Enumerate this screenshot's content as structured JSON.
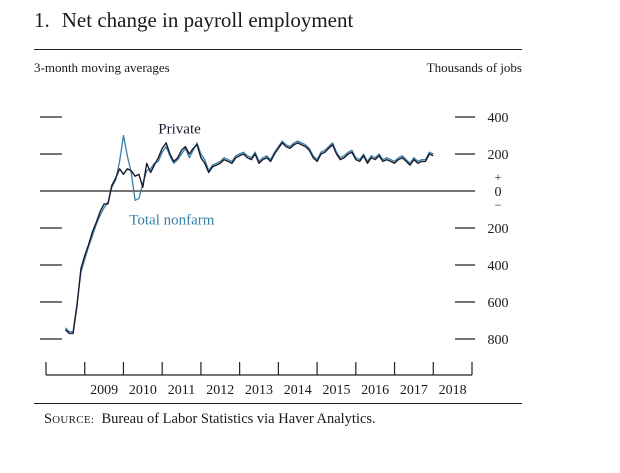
{
  "figure": {
    "number": "1.",
    "title": "Net change in payroll employment",
    "subtitle_left": "3-month moving averages",
    "subtitle_right": "Thousands of jobs",
    "source_label": "Source:",
    "source_text": "Bureau of Labor Statistics via Haver Analytics."
  },
  "chart_data": {
    "type": "line",
    "title": "Net change in payroll employment",
    "ylabel": "Thousands of jobs",
    "note": "3-month moving averages",
    "ylim": [
      -900,
      400
    ],
    "y_ticks": [
      {
        "value": 400,
        "label": "400"
      },
      {
        "value": 200,
        "label": "200"
      },
      {
        "value": -200,
        "label": "200"
      },
      {
        "value": -400,
        "label": "400"
      },
      {
        "value": -600,
        "label": "600"
      },
      {
        "value": -800,
        "label": "800"
      }
    ],
    "zero_label": "0",
    "plus_sign": "+",
    "minus_sign": "−",
    "x_ticks": [
      "2009",
      "2010",
      "2011",
      "2012",
      "2013",
      "2014",
      "2015",
      "2016",
      "2017",
      "2018"
    ],
    "xlim": [
      2008.0,
      2019.0
    ],
    "series": [
      {
        "name": "Private",
        "color": "#1b1b2f",
        "x": [
          2008.5,
          2008.6,
          2008.7,
          2008.8,
          2008.9,
          2009.0,
          2009.1,
          2009.2,
          2009.3,
          2009.4,
          2009.5,
          2009.6,
          2009.7,
          2009.8,
          2009.9,
          2010.0,
          2010.1,
          2010.2,
          2010.3,
          2010.4,
          2010.5,
          2010.6,
          2010.7,
          2010.8,
          2010.9,
          2011.0,
          2011.1,
          2011.2,
          2011.3,
          2011.4,
          2011.5,
          2011.6,
          2011.7,
          2011.8,
          2011.9,
          2012.0,
          2012.1,
          2012.2,
          2012.3,
          2012.4,
          2012.5,
          2012.6,
          2012.7,
          2012.8,
          2012.9,
          2013.0,
          2013.1,
          2013.2,
          2013.3,
          2013.4,
          2013.5,
          2013.6,
          2013.7,
          2013.8,
          2013.9,
          2014.0,
          2014.1,
          2014.2,
          2014.3,
          2014.4,
          2014.5,
          2014.6,
          2014.7,
          2014.8,
          2014.9,
          2015.0,
          2015.1,
          2015.2,
          2015.3,
          2015.4,
          2015.5,
          2015.6,
          2015.7,
          2015.8,
          2015.9,
          2016.0,
          2016.1,
          2016.2,
          2016.3,
          2016.4,
          2016.5,
          2016.6,
          2016.7,
          2016.8,
          2016.9,
          2017.0,
          2017.1,
          2017.2,
          2017.3,
          2017.4,
          2017.5,
          2017.6,
          2017.7,
          2017.8,
          2017.9,
          2018.0
        ],
        "y": [
          -750,
          -770,
          -770,
          -620,
          -420,
          -350,
          -290,
          -220,
          -170,
          -110,
          -70,
          -70,
          30,
          70,
          120,
          90,
          120,
          110,
          80,
          90,
          20,
          150,
          100,
          140,
          180,
          230,
          260,
          200,
          160,
          180,
          220,
          240,
          200,
          230,
          250,
          180,
          150,
          100,
          130,
          140,
          150,
          170,
          160,
          150,
          180,
          190,
          200,
          180,
          170,
          200,
          150,
          170,
          180,
          160,
          200,
          230,
          260,
          240,
          230,
          250,
          260,
          250,
          240,
          220,
          180,
          160,
          200,
          210,
          230,
          250,
          200,
          170,
          180,
          200,
          210,
          170,
          160,
          190,
          150,
          180,
          170,
          190,
          160,
          170,
          160,
          150,
          170,
          180,
          160,
          140,
          170,
          150,
          160,
          160,
          200,
          190
        ]
      },
      {
        "name": "Total nonfarm",
        "color": "#3a7fa6",
        "x": [
          2008.5,
          2008.6,
          2008.7,
          2008.8,
          2008.9,
          2009.0,
          2009.1,
          2009.2,
          2009.3,
          2009.4,
          2009.5,
          2009.6,
          2009.7,
          2009.8,
          2009.9,
          2010.0,
          2010.1,
          2010.2,
          2010.3,
          2010.4,
          2010.5,
          2010.6,
          2010.7,
          2010.8,
          2010.9,
          2011.0,
          2011.1,
          2011.2,
          2011.3,
          2011.4,
          2011.5,
          2011.6,
          2011.7,
          2011.8,
          2011.9,
          2012.0,
          2012.1,
          2012.2,
          2012.3,
          2012.4,
          2012.5,
          2012.6,
          2012.7,
          2012.8,
          2012.9,
          2013.0,
          2013.1,
          2013.2,
          2013.3,
          2013.4,
          2013.5,
          2013.6,
          2013.7,
          2013.8,
          2013.9,
          2014.0,
          2014.1,
          2014.2,
          2014.3,
          2014.4,
          2014.5,
          2014.6,
          2014.7,
          2014.8,
          2014.9,
          2015.0,
          2015.1,
          2015.2,
          2015.3,
          2015.4,
          2015.5,
          2015.6,
          2015.7,
          2015.8,
          2015.9,
          2016.0,
          2016.1,
          2016.2,
          2016.3,
          2016.4,
          2016.5,
          2016.6,
          2016.7,
          2016.8,
          2016.9,
          2017.0,
          2017.1,
          2017.2,
          2017.3,
          2017.4,
          2017.5,
          2017.6,
          2017.7,
          2017.8,
          2017.9,
          2018.0
        ],
        "y": [
          -740,
          -760,
          -760,
          -610,
          -440,
          -370,
          -300,
          -240,
          -180,
          -130,
          -90,
          -60,
          20,
          60,
          160,
          300,
          190,
          100,
          -50,
          -40,
          40,
          110,
          120,
          150,
          160,
          210,
          240,
          190,
          150,
          170,
          200,
          230,
          180,
          220,
          260,
          200,
          170,
          110,
          140,
          150,
          160,
          180,
          170,
          160,
          190,
          200,
          210,
          190,
          180,
          210,
          160,
          180,
          190,
          170,
          210,
          240,
          270,
          250,
          240,
          260,
          270,
          260,
          250,
          230,
          190,
          170,
          210,
          220,
          240,
          260,
          210,
          180,
          190,
          210,
          220,
          180,
          170,
          200,
          160,
          190,
          180,
          200,
          170,
          180,
          170,
          160,
          180,
          190,
          170,
          150,
          180,
          160,
          170,
          170,
          210,
          200
        ]
      }
    ],
    "series_labels": [
      {
        "series": "Private",
        "text": "Private",
        "x": 2010.9,
        "y": 310
      },
      {
        "series": "Total nonfarm",
        "text": "Total nonfarm",
        "x": 2010.15,
        "y": -180
      }
    ],
    "grid": false,
    "legend": "inline labels"
  }
}
